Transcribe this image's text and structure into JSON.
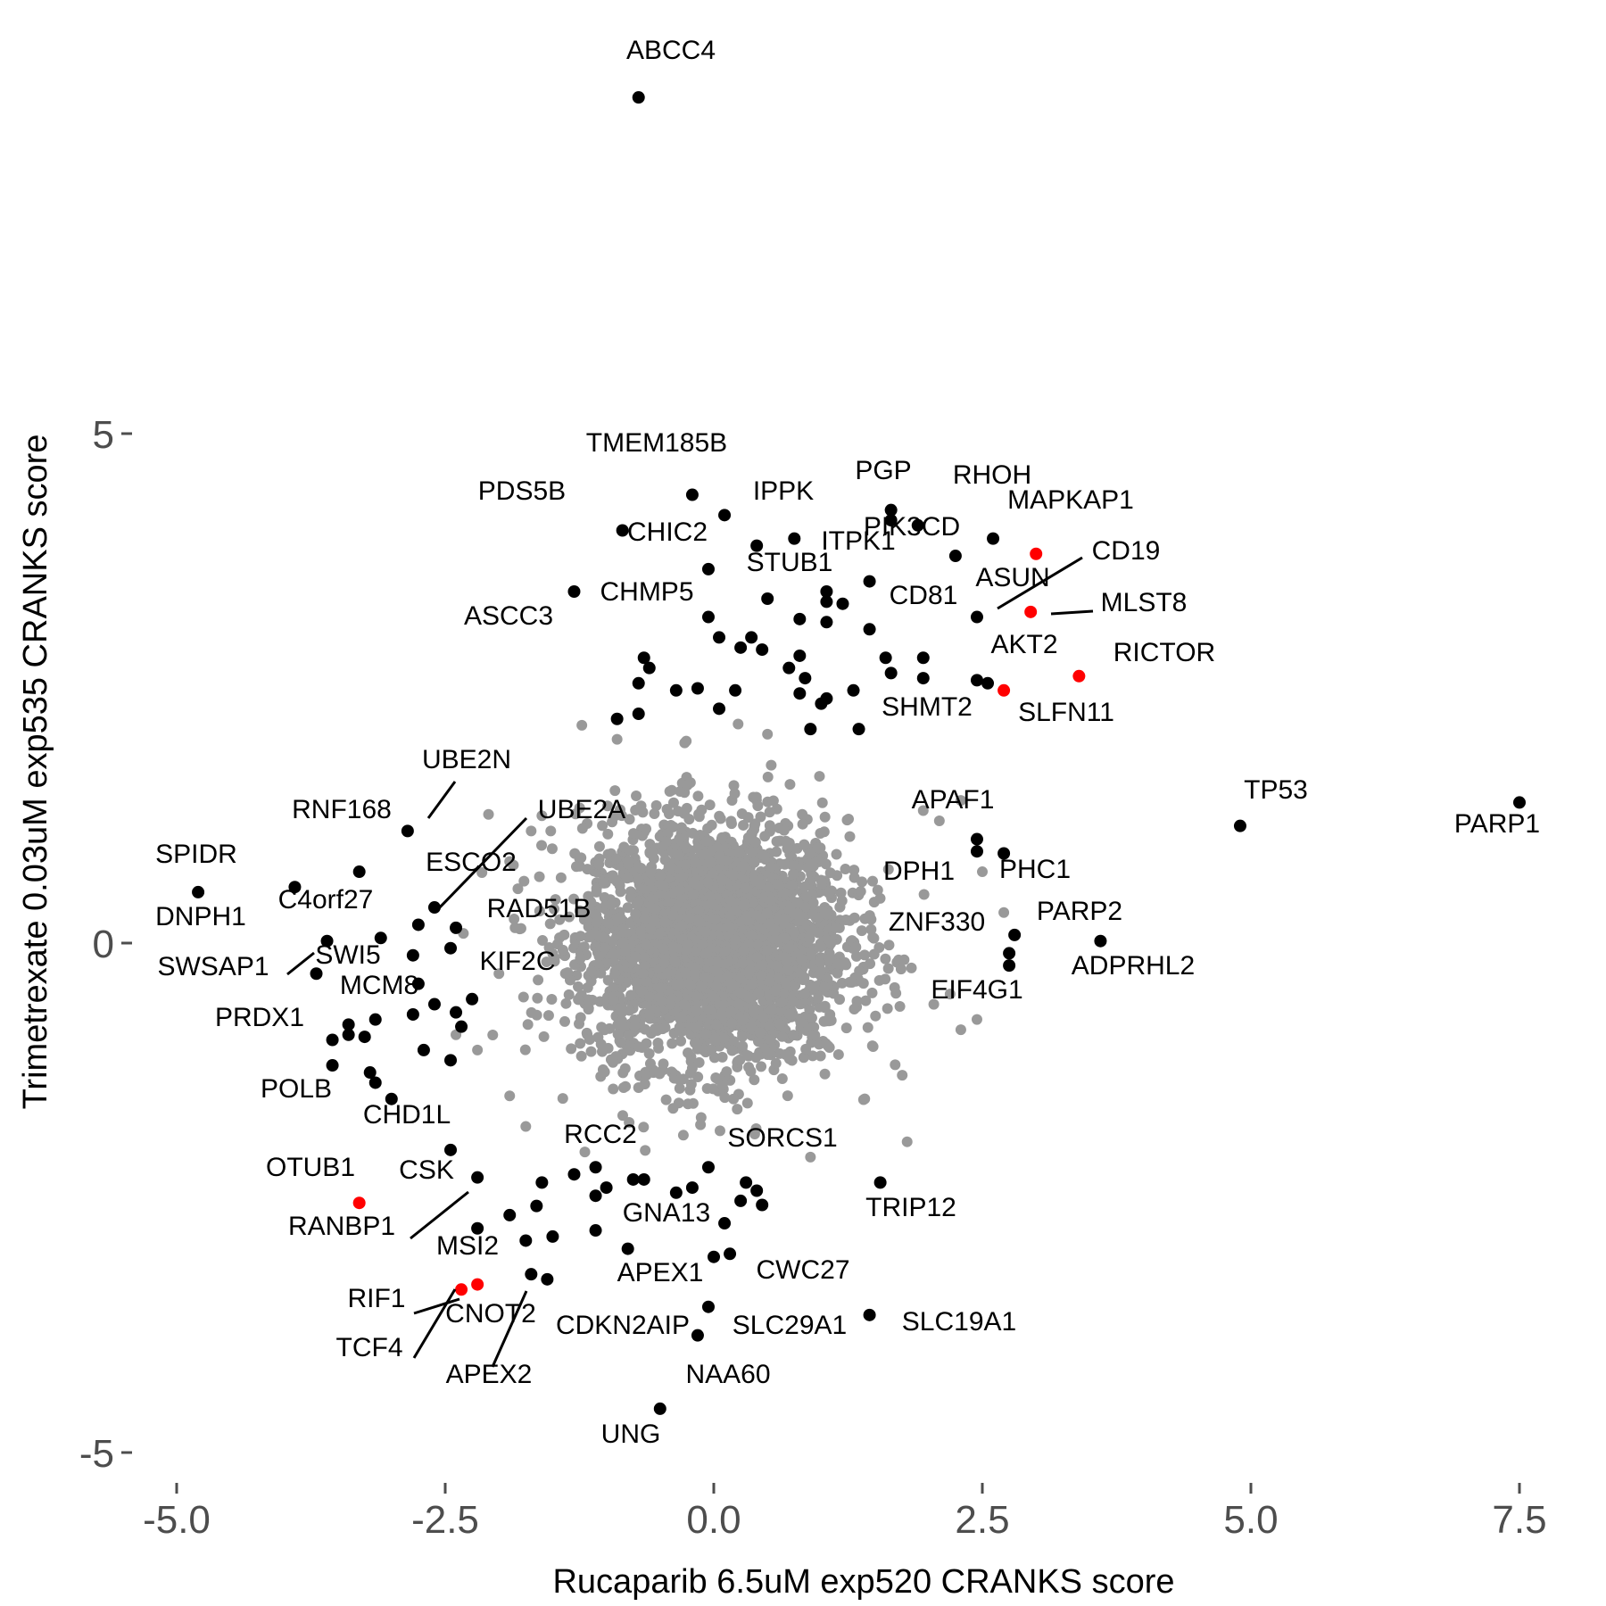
{
  "chart_data": {
    "type": "scatter",
    "title": "",
    "xlabel": "Rucaparib 6.5uM exp520 CRANKS score",
    "ylabel": "Trimetrexate 0.03uM exp535 CRANKS score",
    "xlim": [
      -5.7,
      7.75
    ],
    "ylim": [
      -5.1,
      8.55
    ],
    "x_ticks": [
      -5.0,
      -2.5,
      0.0,
      2.5,
      5.0,
      7.5
    ],
    "x_tick_labels": [
      "-5.0",
      "-2.5",
      "0.0",
      "2.5",
      "5.0",
      "7.5"
    ],
    "y_ticks": [
      -5,
      0,
      5
    ],
    "y_tick_labels": [
      "-5",
      "0",
      "5"
    ],
    "grid": false,
    "legend": "none",
    "colors": {
      "background_points": "#999999",
      "highlight_points": "#000000",
      "mtor_points": "#ff0000",
      "tick_text": "#4d4d4d"
    },
    "highlighted_points": [
      {
        "x": -0.7,
        "y": 8.3,
        "color": "black"
      },
      {
        "x": -0.2,
        "y": 4.4,
        "color": "black"
      },
      {
        "x": 0.1,
        "y": 4.2,
        "color": "black"
      },
      {
        "x": -0.85,
        "y": 4.05,
        "color": "black"
      },
      {
        "x": 0.4,
        "y": 3.9,
        "color": "black"
      },
      {
        "x": 0.75,
        "y": 3.97,
        "color": "black"
      },
      {
        "x": -0.05,
        "y": 3.67,
        "color": "black"
      },
      {
        "x": 1.65,
        "y": 4.25,
        "color": "black"
      },
      {
        "x": 1.65,
        "y": 4.15,
        "color": "black"
      },
      {
        "x": 1.9,
        "y": 4.1,
        "color": "black"
      },
      {
        "x": 2.6,
        "y": 3.97,
        "color": "black"
      },
      {
        "x": 2.25,
        "y": 3.8,
        "color": "black"
      },
      {
        "x": 3.0,
        "y": 3.82,
        "color": "red"
      },
      {
        "x": 1.45,
        "y": 3.55,
        "color": "black"
      },
      {
        "x": 1.05,
        "y": 3.45,
        "color": "black"
      },
      {
        "x": 1.05,
        "y": 3.35,
        "color": "black"
      },
      {
        "x": 1.2,
        "y": 3.33,
        "color": "black"
      },
      {
        "x": 0.5,
        "y": 3.38,
        "color": "black"
      },
      {
        "x": -1.3,
        "y": 3.45,
        "color": "black"
      },
      {
        "x": 0.8,
        "y": 3.18,
        "color": "black"
      },
      {
        "x": 1.05,
        "y": 3.15,
        "color": "black"
      },
      {
        "x": 1.45,
        "y": 3.08,
        "color": "black"
      },
      {
        "x": 2.45,
        "y": 3.2,
        "color": "black"
      },
      {
        "x": 2.95,
        "y": 3.25,
        "color": "red"
      },
      {
        "x": -0.05,
        "y": 3.2,
        "color": "black"
      },
      {
        "x": 0.05,
        "y": 3.0,
        "color": "black"
      },
      {
        "x": 0.25,
        "y": 2.9,
        "color": "black"
      },
      {
        "x": 0.35,
        "y": 3.0,
        "color": "black"
      },
      {
        "x": 0.45,
        "y": 2.88,
        "color": "black"
      },
      {
        "x": -0.65,
        "y": 2.8,
        "color": "black"
      },
      {
        "x": -0.7,
        "y": 2.55,
        "color": "black"
      },
      {
        "x": 0.8,
        "y": 2.82,
        "color": "black"
      },
      {
        "x": 0.7,
        "y": 2.7,
        "color": "black"
      },
      {
        "x": 0.85,
        "y": 2.6,
        "color": "black"
      },
      {
        "x": 0.8,
        "y": 2.45,
        "color": "black"
      },
      {
        "x": 1.6,
        "y": 2.8,
        "color": "black"
      },
      {
        "x": 1.95,
        "y": 2.8,
        "color": "black"
      },
      {
        "x": 1.65,
        "y": 2.65,
        "color": "black"
      },
      {
        "x": 1.95,
        "y": 2.6,
        "color": "black"
      },
      {
        "x": 2.45,
        "y": 2.58,
        "color": "black"
      },
      {
        "x": 2.55,
        "y": 2.55,
        "color": "black"
      },
      {
        "x": 2.7,
        "y": 2.48,
        "color": "red"
      },
      {
        "x": 3.4,
        "y": 2.62,
        "color": "red"
      },
      {
        "x": -0.6,
        "y": 2.7,
        "color": "black"
      },
      {
        "x": -0.15,
        "y": 2.5,
        "color": "black"
      },
      {
        "x": -0.35,
        "y": 2.48,
        "color": "black"
      },
      {
        "x": 0.2,
        "y": 2.48,
        "color": "black"
      },
      {
        "x": 0.05,
        "y": 2.3,
        "color": "black"
      },
      {
        "x": 1.05,
        "y": 2.4,
        "color": "black"
      },
      {
        "x": 1.0,
        "y": 2.35,
        "color": "black"
      },
      {
        "x": 1.3,
        "y": 2.48,
        "color": "black"
      },
      {
        "x": -0.9,
        "y": 2.2,
        "color": "black"
      },
      {
        "x": -0.7,
        "y": 2.25,
        "color": "black"
      },
      {
        "x": 0.9,
        "y": 2.1,
        "color": "black"
      },
      {
        "x": 1.35,
        "y": 2.1,
        "color": "black"
      },
      {
        "x": 7.5,
        "y": 1.38,
        "color": "black"
      },
      {
        "x": 4.9,
        "y": 1.15,
        "color": "black"
      },
      {
        "x": 2.45,
        "y": 1.02,
        "color": "black"
      },
      {
        "x": 2.7,
        "y": 0.88,
        "color": "black"
      },
      {
        "x": 2.45,
        "y": 0.9,
        "color": "black"
      },
      {
        "x": -2.85,
        "y": 1.1,
        "color": "black"
      },
      {
        "x": -3.3,
        "y": 0.7,
        "color": "black"
      },
      {
        "x": -4.8,
        "y": 0.5,
        "color": "black"
      },
      {
        "x": -3.9,
        "y": 0.55,
        "color": "black"
      },
      {
        "x": -2.6,
        "y": 0.35,
        "color": "black"
      },
      {
        "x": -2.75,
        "y": 0.18,
        "color": "black"
      },
      {
        "x": -2.4,
        "y": 0.15,
        "color": "black"
      },
      {
        "x": -3.1,
        "y": 0.05,
        "color": "black"
      },
      {
        "x": -3.6,
        "y": 0.02,
        "color": "black"
      },
      {
        "x": -2.45,
        "y": -0.05,
        "color": "black"
      },
      {
        "x": -2.8,
        "y": -0.12,
        "color": "black"
      },
      {
        "x": -3.7,
        "y": -0.3,
        "color": "black"
      },
      {
        "x": 2.8,
        "y": 0.08,
        "color": "black"
      },
      {
        "x": 3.6,
        "y": 0.02,
        "color": "black"
      },
      {
        "x": 2.75,
        "y": -0.1,
        "color": "black"
      },
      {
        "x": 2.75,
        "y": -0.22,
        "color": "black"
      },
      {
        "x": -2.75,
        "y": -0.4,
        "color": "black"
      },
      {
        "x": -2.25,
        "y": -0.55,
        "color": "black"
      },
      {
        "x": -2.6,
        "y": -0.6,
        "color": "black"
      },
      {
        "x": -2.8,
        "y": -0.7,
        "color": "black"
      },
      {
        "x": -2.4,
        "y": -0.68,
        "color": "black"
      },
      {
        "x": -3.15,
        "y": -0.75,
        "color": "black"
      },
      {
        "x": -2.35,
        "y": -0.82,
        "color": "black"
      },
      {
        "x": -3.4,
        "y": -0.8,
        "color": "black"
      },
      {
        "x": -3.4,
        "y": -0.9,
        "color": "black"
      },
      {
        "x": -3.25,
        "y": -0.92,
        "color": "black"
      },
      {
        "x": -3.55,
        "y": -0.95,
        "color": "black"
      },
      {
        "x": -2.7,
        "y": -1.05,
        "color": "black"
      },
      {
        "x": -2.45,
        "y": -1.15,
        "color": "black"
      },
      {
        "x": -3.55,
        "y": -1.2,
        "color": "black"
      },
      {
        "x": -3.2,
        "y": -1.27,
        "color": "black"
      },
      {
        "x": -3.15,
        "y": -1.37,
        "color": "black"
      },
      {
        "x": -3.0,
        "y": -1.53,
        "color": "black"
      },
      {
        "x": -2.45,
        "y": -2.03,
        "color": "black"
      },
      {
        "x": -2.2,
        "y": -2.3,
        "color": "black"
      },
      {
        "x": -3.3,
        "y": -2.55,
        "color": "red"
      },
      {
        "x": -1.3,
        "y": -2.27,
        "color": "black"
      },
      {
        "x": -1.1,
        "y": -2.2,
        "color": "black"
      },
      {
        "x": -1.0,
        "y": -2.4,
        "color": "black"
      },
      {
        "x": -1.1,
        "y": -2.48,
        "color": "black"
      },
      {
        "x": -0.75,
        "y": -2.32,
        "color": "black"
      },
      {
        "x": -0.65,
        "y": -2.32,
        "color": "black"
      },
      {
        "x": -0.35,
        "y": -2.45,
        "color": "black"
      },
      {
        "x": -0.2,
        "y": -2.4,
        "color": "black"
      },
      {
        "x": -0.05,
        "y": -2.2,
        "color": "black"
      },
      {
        "x": 0.3,
        "y": -2.35,
        "color": "black"
      },
      {
        "x": 0.4,
        "y": -2.43,
        "color": "black"
      },
      {
        "x": 0.25,
        "y": -2.53,
        "color": "black"
      },
      {
        "x": 0.45,
        "y": -2.57,
        "color": "black"
      },
      {
        "x": 0.1,
        "y": -2.75,
        "color": "black"
      },
      {
        "x": 1.55,
        "y": -2.35,
        "color": "black"
      },
      {
        "x": -1.6,
        "y": -2.35,
        "color": "black"
      },
      {
        "x": -1.65,
        "y": -2.58,
        "color": "black"
      },
      {
        "x": -1.9,
        "y": -2.67,
        "color": "black"
      },
      {
        "x": -2.2,
        "y": -2.8,
        "color": "black"
      },
      {
        "x": -1.1,
        "y": -2.82,
        "color": "black"
      },
      {
        "x": -1.75,
        "y": -2.92,
        "color": "black"
      },
      {
        "x": -1.5,
        "y": -2.88,
        "color": "black"
      },
      {
        "x": -0.8,
        "y": -3.0,
        "color": "black"
      },
      {
        "x": 0.0,
        "y": -3.08,
        "color": "black"
      },
      {
        "x": 0.15,
        "y": -3.05,
        "color": "black"
      },
      {
        "x": -1.7,
        "y": -3.25,
        "color": "black"
      },
      {
        "x": -1.55,
        "y": -3.3,
        "color": "black"
      },
      {
        "x": -2.2,
        "y": -3.35,
        "color": "red"
      },
      {
        "x": -2.35,
        "y": -3.4,
        "color": "red"
      },
      {
        "x": -0.05,
        "y": -3.57,
        "color": "black"
      },
      {
        "x": 1.45,
        "y": -3.65,
        "color": "black"
      },
      {
        "x": -0.15,
        "y": -3.85,
        "color": "black"
      },
      {
        "x": -0.5,
        "y": -4.57,
        "color": "black"
      }
    ],
    "labels": [
      {
        "text": "ABCC4",
        "x": -0.7,
        "y": 8.3
      },
      {
        "text": "TMEM185B",
        "x": -0.2,
        "y": 4.4
      },
      {
        "text": "PDS5B",
        "x": -0.85,
        "y": 4.05
      },
      {
        "text": "IPPK",
        "x": 0.1,
        "y": 4.2
      },
      {
        "text": "PGP",
        "x": 1.65,
        "y": 4.25
      },
      {
        "text": "RHOH",
        "x": 2.25,
        "y": 3.8
      },
      {
        "text": "MAPKAP1",
        "x": 3.0,
        "y": 3.82
      },
      {
        "text": "CHIC2",
        "x": -0.05,
        "y": 3.67
      },
      {
        "text": "PIK3CD",
        "x": 1.9,
        "y": 4.1
      },
      {
        "text": "ITPK1",
        "x": 1.45,
        "y": 3.55
      },
      {
        "text": "STUB1",
        "x": 0.75,
        "y": 3.97
      },
      {
        "text": "CD19",
        "x": 2.45,
        "y": 3.2
      },
      {
        "text": "ASUN",
        "x": 2.45,
        "y": 3.2
      },
      {
        "text": "CHMP5",
        "x": -1.3,
        "y": 3.45
      },
      {
        "text": "CD81",
        "x": 1.45,
        "y": 3.08
      },
      {
        "text": "MLST8",
        "x": 2.95,
        "y": 3.25
      },
      {
        "text": "ASCC3",
        "x": -1.3,
        "y": 3.45
      },
      {
        "text": "AKT2",
        "x": 2.45,
        "y": 2.58
      },
      {
        "text": "RICTOR",
        "x": 3.4,
        "y": 2.62
      },
      {
        "text": "SLFN11",
        "x": 2.7,
        "y": 2.48
      },
      {
        "text": "SHMT2",
        "x": 1.35,
        "y": 2.1
      },
      {
        "text": "UBE2N",
        "x": -2.85,
        "y": 1.1
      },
      {
        "text": "RNF168",
        "x": -2.85,
        "y": 1.1
      },
      {
        "text": "UBE2A",
        "x": -2.6,
        "y": 0.35
      },
      {
        "text": "TP53",
        "x": 4.9,
        "y": 1.15
      },
      {
        "text": "APAF1",
        "x": 2.45,
        "y": 1.02
      },
      {
        "text": "PARP1",
        "x": 7.5,
        "y": 1.38
      },
      {
        "text": "SPIDR",
        "x": -4.8,
        "y": 0.5
      },
      {
        "text": "ESCO2",
        "x": -2.6,
        "y": 0.35
      },
      {
        "text": "DPH1",
        "x": 2.45,
        "y": 0.9
      },
      {
        "text": "PHC1",
        "x": 2.7,
        "y": 0.88
      },
      {
        "text": "C4orf27",
        "x": -3.6,
        "y": 0.02
      },
      {
        "text": "DNPH1",
        "x": -4.8,
        "y": 0.5
      },
      {
        "text": "RAD51B",
        "x": -2.4,
        "y": 0.15
      },
      {
        "text": "PARP2",
        "x": 2.8,
        "y": 0.08
      },
      {
        "text": "ZNF330",
        "x": 2.75,
        "y": -0.1
      },
      {
        "text": "SWI5",
        "x": -3.6,
        "y": 0.02
      },
      {
        "text": "SWSAP1",
        "x": -3.7,
        "y": -0.3
      },
      {
        "text": "KIF2C",
        "x": -2.25,
        "y": -0.55
      },
      {
        "text": "ADPRHL2",
        "x": 3.6,
        "y": 0.02
      },
      {
        "text": "MCM8",
        "x": -2.8,
        "y": -0.7
      },
      {
        "text": "EIF4G1",
        "x": 2.75,
        "y": -0.22
      },
      {
        "text": "PRDX1",
        "x": -3.55,
        "y": -0.95
      },
      {
        "text": "POLB",
        "x": -3.2,
        "y": -1.27
      },
      {
        "text": "CHD1L",
        "x": -3.0,
        "y": -1.53
      },
      {
        "text": "RCC2",
        "x": -1.3,
        "y": -2.27
      },
      {
        "text": "SORCS1",
        "x": -0.05,
        "y": -2.2
      },
      {
        "text": "OTUB1",
        "x": -3.3,
        "y": -2.55
      },
      {
        "text": "CSK",
        "x": -2.2,
        "y": -2.3
      },
      {
        "text": "TRIP12",
        "x": 1.55,
        "y": -2.35
      },
      {
        "text": "GNA13",
        "x": -0.65,
        "y": -2.32
      },
      {
        "text": "RANBP1",
        "x": -2.2,
        "y": -2.3
      },
      {
        "text": "MSI2",
        "x": -2.2,
        "y": -3.35
      },
      {
        "text": "CWC27",
        "x": 0.15,
        "y": -3.05
      },
      {
        "text": "APEX1",
        "x": 0.0,
        "y": -3.08
      },
      {
        "text": "RIF1",
        "x": -2.35,
        "y": -3.4
      },
      {
        "text": "CNOT2",
        "x": -1.7,
        "y": -3.25
      },
      {
        "text": "CDKN2AIP",
        "x": -0.15,
        "y": -3.85
      },
      {
        "text": "SLC29A1",
        "x": -0.05,
        "y": -3.57
      },
      {
        "text": "SLC19A1",
        "x": 1.45,
        "y": -3.65
      },
      {
        "text": "TCF4",
        "x": -2.35,
        "y": -3.4
      },
      {
        "text": "APEX2",
        "x": -1.7,
        "y": -3.25
      },
      {
        "text": "NAA60",
        "x": -0.5,
        "y": -4.57
      },
      {
        "text": "UNG",
        "x": -0.5,
        "y": -4.57
      }
    ]
  }
}
